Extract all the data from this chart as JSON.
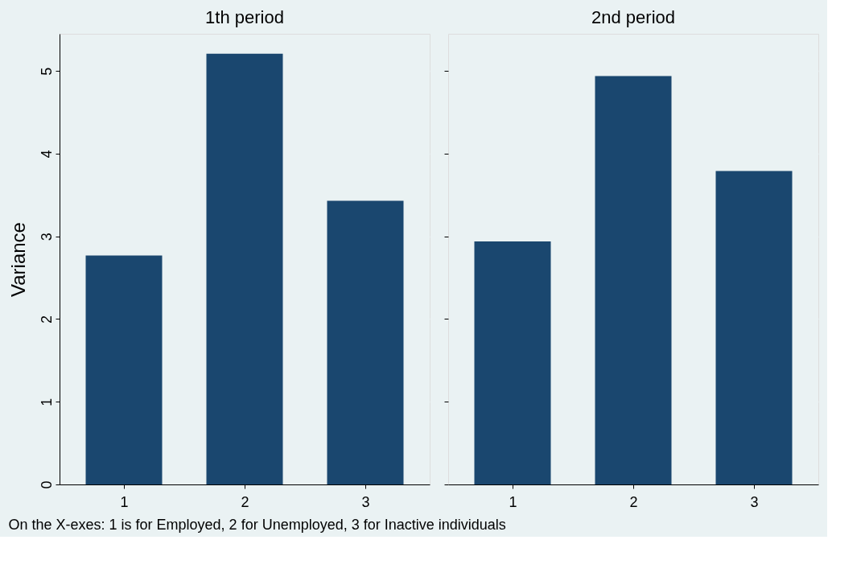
{
  "chart_data": [
    {
      "type": "bar",
      "title": "1th period",
      "ylabel": "Variance",
      "categories": [
        "1",
        "2",
        "3"
      ],
      "values": [
        2.77,
        5.21,
        3.43
      ],
      "color": "#1a476f",
      "ylim": [
        0,
        5.45
      ],
      "yticks": [
        0,
        1,
        2,
        3,
        4,
        5
      ],
      "grid": "y",
      "annotations": [
        "On the X-exes: 1 is for Employed, 2 for Unemployed, 3 for Inactive individuals"
      ]
    },
    {
      "type": "bar",
      "title": "2nd period",
      "categories": [
        "1",
        "2",
        "3"
      ],
      "values": [
        2.94,
        4.94,
        3.79
      ],
      "color": "#1a476f",
      "ylim": [
        0,
        5.45
      ],
      "yticks": [
        0,
        1,
        2,
        3,
        4,
        5
      ],
      "grid": "y",
      "tick_labels": "x"
    }
  ]
}
